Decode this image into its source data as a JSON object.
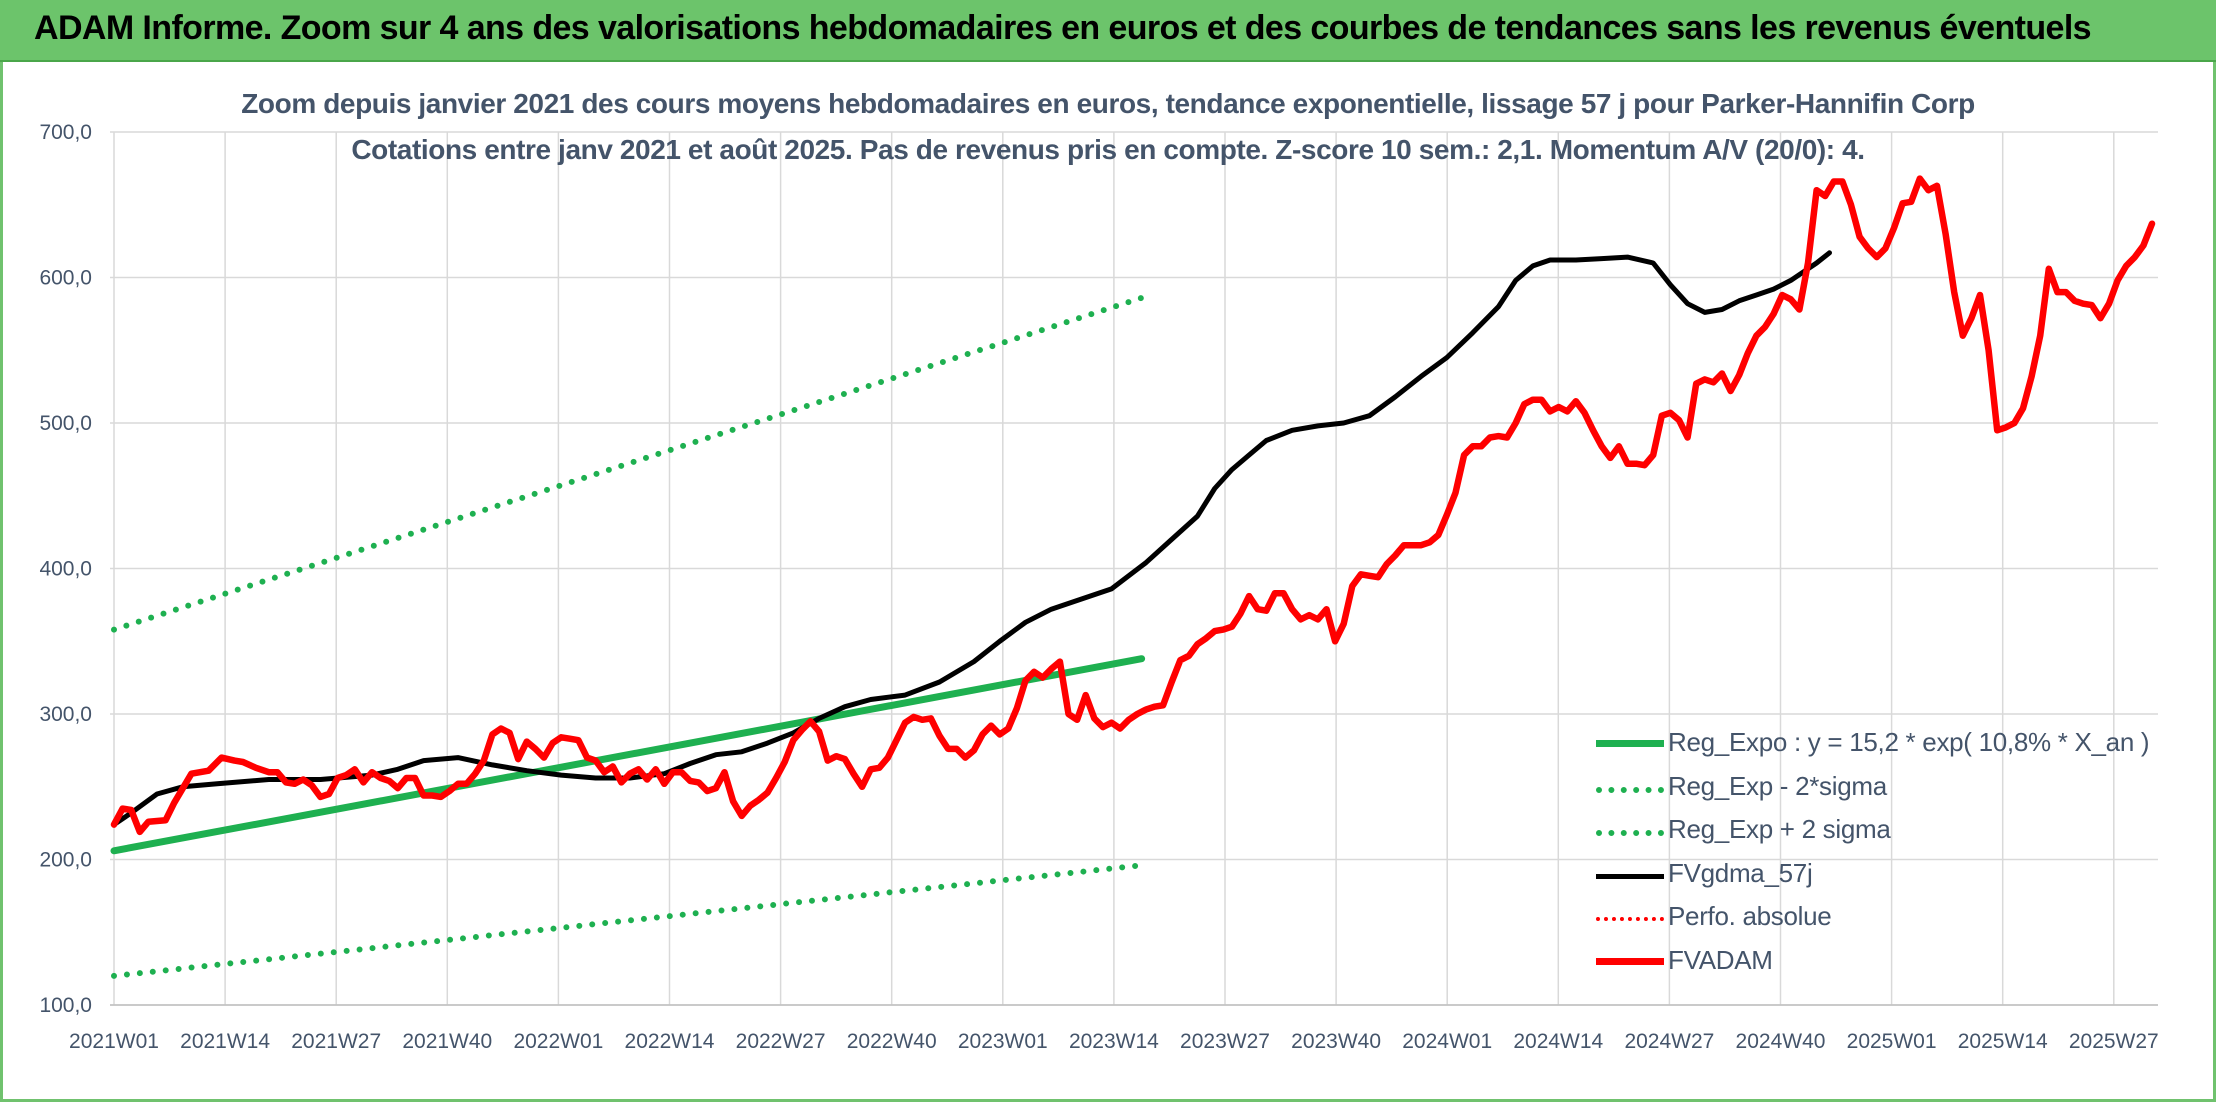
{
  "banner": {
    "title": "ADAM Informe. Zoom sur 4 ans des valorisations hebdomadaires en euros et des courbes de tendances sans les revenus éventuels"
  },
  "chart_data": {
    "type": "line",
    "title": "Zoom depuis janvier 2021 des cours moyens hebdomadaires en euros, tendance exponentielle, lissage 57 j pour Parker-Hannifin Corp",
    "subtitle": "Cotations entre janv 2021 et août 2025. Pas de revenus pris en compte. Z-score 10 sem.: 2,1. Momentum A/V (20/0): 4.",
    "xlabel": "",
    "ylabel": "",
    "ylim": [
      100,
      700
    ],
    "yticks": [
      "100,0",
      "200,0",
      "300,0",
      "400,0",
      "500,0",
      "600,0",
      "700,0"
    ],
    "xticks": [
      "2021W01",
      "2021W14",
      "2021W27",
      "2021W40",
      "2022W01",
      "2022W14",
      "2022W27",
      "2022W40",
      "2023W01",
      "2023W14",
      "2023W27",
      "2023W40",
      "2024W01",
      "2024W14",
      "2024W27",
      "2024W40",
      "2025W01",
      "2025W14",
      "2025W27"
    ],
    "grid": true,
    "legend_position": "bottom-right",
    "series": [
      {
        "name": "Reg_Expo : y = 15,2 * exp( 10,8% *  X_an )",
        "style": "solid",
        "color": "#1eb050",
        "points": [
          [
            0,
            206
          ],
          [
            239,
            338
          ]
        ]
      },
      {
        "name": "Reg_Exp - 2*sigma",
        "style": "dotted",
        "color": "#1eb050",
        "points": [
          [
            0,
            120
          ],
          [
            239,
            196
          ]
        ]
      },
      {
        "name": "Reg_Exp + 2 sigma",
        "style": "dotted",
        "color": "#1eb050",
        "points": [
          [
            0,
            358
          ],
          [
            239,
            586
          ]
        ]
      },
      {
        "name": "FVgdma_57j",
        "style": "solid",
        "color": "#000000",
        "points": [
          [
            0,
            224
          ],
          [
            4,
            232
          ],
          [
            10,
            245
          ],
          [
            16,
            250
          ],
          [
            24,
            252
          ],
          [
            36,
            255
          ],
          [
            48,
            255
          ],
          [
            60,
            258
          ],
          [
            66,
            262
          ],
          [
            72,
            268
          ],
          [
            80,
            270
          ],
          [
            88,
            265
          ],
          [
            96,
            261
          ],
          [
            104,
            258
          ],
          [
            112,
            256
          ],
          [
            120,
            256
          ],
          [
            128,
            259
          ],
          [
            134,
            266
          ],
          [
            140,
            272
          ],
          [
            146,
            274
          ],
          [
            152,
            280
          ],
          [
            158,
            287
          ],
          [
            164,
            297
          ],
          [
            170,
            305
          ],
          [
            176,
            310
          ],
          [
            184,
            313
          ],
          [
            192,
            322
          ],
          [
            200,
            336
          ],
          [
            206,
            350
          ],
          [
            212,
            363
          ],
          [
            218,
            372
          ],
          [
            224,
            378
          ],
          [
            232,
            386
          ],
          [
            240,
            404
          ],
          [
            246,
            420
          ],
          [
            252,
            436
          ],
          [
            256,
            455
          ],
          [
            260,
            468
          ],
          [
            264,
            478
          ],
          [
            268,
            488
          ],
          [
            274,
            495
          ],
          [
            280,
            498
          ],
          [
            286,
            500
          ],
          [
            292,
            505
          ],
          [
            298,
            518
          ],
          [
            304,
            532
          ],
          [
            310,
            545
          ],
          [
            316,
            562
          ],
          [
            322,
            580
          ],
          [
            326,
            598
          ],
          [
            330,
            608
          ],
          [
            334,
            612
          ],
          [
            340,
            612
          ],
          [
            346,
            613
          ],
          [
            352,
            614
          ],
          [
            358,
            610
          ],
          [
            362,
            595
          ],
          [
            366,
            582
          ],
          [
            370,
            576
          ],
          [
            374,
            578
          ],
          [
            378,
            584
          ],
          [
            382,
            588
          ],
          [
            386,
            592
          ],
          [
            390,
            598
          ],
          [
            394,
            606
          ],
          [
            396,
            610
          ],
          [
            399,
            617
          ]
        ]
      },
      {
        "name": "Perfo. absolue",
        "style": "dotted",
        "color": "#ff0000",
        "points": []
      },
      {
        "name": "FVADAM",
        "style": "solid",
        "color": "#ff0000",
        "points": [
          [
            0,
            224
          ],
          [
            2,
            235
          ],
          [
            4,
            234
          ],
          [
            6,
            219
          ],
          [
            8,
            226
          ],
          [
            12,
            227
          ],
          [
            14,
            239
          ],
          [
            18,
            259
          ],
          [
            22,
            261
          ],
          [
            25,
            270
          ],
          [
            28,
            268
          ],
          [
            30,
            267
          ],
          [
            33,
            263
          ],
          [
            36,
            260
          ],
          [
            38,
            260
          ],
          [
            40,
            253
          ],
          [
            42,
            252
          ],
          [
            44,
            255
          ],
          [
            46,
            251
          ],
          [
            48,
            243
          ],
          [
            50,
            245
          ],
          [
            52,
            256
          ],
          [
            54,
            258
          ],
          [
            56,
            262
          ],
          [
            58,
            253
          ],
          [
            60,
            260
          ],
          [
            62,
            256
          ],
          [
            64,
            254
          ],
          [
            66,
            249
          ],
          [
            68,
            256
          ],
          [
            70,
            256
          ],
          [
            72,
            244
          ],
          [
            74,
            244
          ],
          [
            76,
            243
          ],
          [
            78,
            247
          ],
          [
            80,
            252
          ],
          [
            82,
            252
          ],
          [
            84,
            259
          ],
          [
            86,
            268
          ],
          [
            88,
            286
          ],
          [
            90,
            290
          ],
          [
            92,
            287
          ],
          [
            94,
            269
          ],
          [
            96,
            281
          ],
          [
            98,
            276
          ],
          [
            100,
            270
          ],
          [
            102,
            280
          ],
          [
            104,
            284
          ],
          [
            106,
            283
          ],
          [
            108,
            282
          ],
          [
            110,
            270
          ],
          [
            112,
            268
          ],
          [
            114,
            260
          ],
          [
            116,
            264
          ],
          [
            118,
            253
          ],
          [
            120,
            259
          ],
          [
            122,
            262
          ],
          [
            124,
            255
          ],
          [
            126,
            262
          ],
          [
            128,
            252
          ],
          [
            130,
            260
          ],
          [
            132,
            260
          ],
          [
            134,
            254
          ],
          [
            136,
            253
          ],
          [
            138,
            247
          ],
          [
            140,
            249
          ],
          [
            142,
            260
          ],
          [
            144,
            240
          ],
          [
            146,
            230
          ],
          [
            148,
            237
          ],
          [
            150,
            241
          ],
          [
            152,
            246
          ],
          [
            154,
            256
          ],
          [
            156,
            267
          ],
          [
            158,
            282
          ],
          [
            160,
            289
          ],
          [
            162,
            295
          ],
          [
            164,
            288
          ],
          [
            166,
            268
          ],
          [
            168,
            271
          ],
          [
            170,
            269
          ],
          [
            172,
            259
          ],
          [
            174,
            250
          ],
          [
            176,
            262
          ],
          [
            178,
            263
          ],
          [
            180,
            270
          ],
          [
            182,
            282
          ],
          [
            184,
            294
          ],
          [
            186,
            298
          ],
          [
            188,
            296
          ],
          [
            190,
            297
          ],
          [
            192,
            285
          ],
          [
            194,
            276
          ],
          [
            196,
            276
          ],
          [
            198,
            270
          ],
          [
            200,
            275
          ],
          [
            202,
            286
          ],
          [
            204,
            292
          ],
          [
            206,
            286
          ],
          [
            208,
            290
          ],
          [
            210,
            304
          ],
          [
            212,
            323
          ],
          [
            214,
            329
          ],
          [
            216,
            325
          ],
          [
            218,
            331
          ],
          [
            220,
            336
          ],
          [
            222,
            300
          ],
          [
            224,
            296
          ],
          [
            226,
            313
          ],
          [
            228,
            297
          ],
          [
            230,
            291
          ],
          [
            232,
            294
          ],
          [
            234,
            290
          ],
          [
            236,
            296
          ],
          [
            238,
            300
          ],
          [
            240,
            303
          ],
          [
            242,
            305
          ],
          [
            244,
            306
          ],
          [
            246,
            322
          ],
          [
            248,
            337
          ],
          [
            250,
            340
          ],
          [
            252,
            348
          ],
          [
            254,
            352
          ],
          [
            256,
            357
          ],
          [
            258,
            358
          ],
          [
            260,
            360
          ],
          [
            262,
            369
          ],
          [
            264,
            381
          ],
          [
            266,
            372
          ],
          [
            268,
            371
          ],
          [
            270,
            383
          ],
          [
            272,
            383
          ],
          [
            274,
            372
          ],
          [
            276,
            365
          ],
          [
            278,
            368
          ],
          [
            280,
            365
          ],
          [
            282,
            372
          ],
          [
            284,
            350
          ],
          [
            286,
            362
          ],
          [
            288,
            388
          ],
          [
            290,
            396
          ],
          [
            292,
            395
          ],
          [
            294,
            394
          ],
          [
            296,
            403
          ],
          [
            298,
            409
          ],
          [
            300,
            416
          ],
          [
            302,
            416
          ],
          [
            304,
            416
          ],
          [
            306,
            418
          ],
          [
            308,
            423
          ],
          [
            310,
            437
          ],
          [
            312,
            452
          ],
          [
            314,
            478
          ],
          [
            316,
            484
          ],
          [
            318,
            484
          ],
          [
            320,
            490
          ],
          [
            322,
            491
          ],
          [
            324,
            490
          ],
          [
            326,
            500
          ],
          [
            328,
            513
          ],
          [
            330,
            516
          ],
          [
            332,
            516
          ],
          [
            334,
            508
          ],
          [
            336,
            511
          ],
          [
            338,
            508
          ],
          [
            340,
            515
          ],
          [
            342,
            507
          ],
          [
            344,
            495
          ],
          [
            346,
            484
          ],
          [
            348,
            476
          ],
          [
            350,
            484
          ],
          [
            352,
            472
          ],
          [
            354,
            472
          ],
          [
            356,
            471
          ],
          [
            358,
            478
          ],
          [
            360,
            505
          ],
          [
            362,
            507
          ],
          [
            364,
            502
          ],
          [
            366,
            490
          ],
          [
            368,
            527
          ],
          [
            370,
            530
          ],
          [
            372,
            528
          ],
          [
            374,
            534
          ],
          [
            376,
            522
          ],
          [
            378,
            533
          ],
          [
            380,
            548
          ],
          [
            382,
            560
          ],
          [
            384,
            566
          ],
          [
            386,
            575
          ],
          [
            388,
            588
          ],
          [
            390,
            585
          ],
          [
            392,
            578
          ],
          [
            394,
            610
          ],
          [
            396,
            660
          ],
          [
            398,
            656
          ],
          [
            400,
            666
          ],
          [
            402,
            666
          ],
          [
            404,
            650
          ],
          [
            406,
            628
          ],
          [
            408,
            620
          ],
          [
            410,
            614
          ],
          [
            412,
            620
          ],
          [
            414,
            634
          ],
          [
            416,
            651
          ],
          [
            418,
            652
          ],
          [
            420,
            668
          ],
          [
            422,
            660
          ],
          [
            424,
            663
          ],
          [
            426,
            630
          ],
          [
            428,
            590
          ],
          [
            430,
            560
          ],
          [
            432,
            572
          ],
          [
            434,
            588
          ],
          [
            436,
            550
          ],
          [
            438,
            495
          ],
          [
            440,
            497
          ],
          [
            442,
            500
          ],
          [
            444,
            510
          ],
          [
            446,
            532
          ],
          [
            448,
            560
          ],
          [
            450,
            606
          ],
          [
            452,
            590
          ],
          [
            454,
            590
          ],
          [
            456,
            584
          ],
          [
            458,
            582
          ],
          [
            460,
            581
          ],
          [
            462,
            572
          ],
          [
            464,
            582
          ],
          [
            466,
            598
          ],
          [
            468,
            608
          ],
          [
            470,
            614
          ],
          [
            472,
            622
          ],
          [
            474,
            637
          ]
        ]
      }
    ]
  }
}
